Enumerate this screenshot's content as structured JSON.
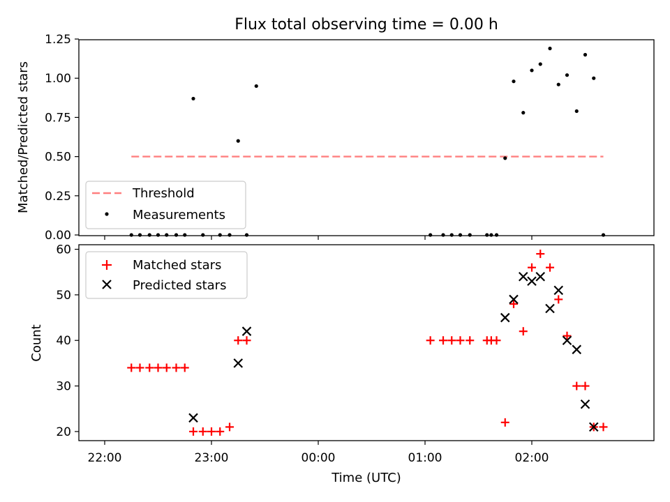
{
  "title": "Flux total observing time = 0.00 h",
  "x_ticks": [
    "22:00",
    "23:00",
    "00:00",
    "01:00",
    "02:00"
  ],
  "chart_data": [
    {
      "type": "scatter",
      "ylabel": "Matched/Predicted stars",
      "ylim": [
        0,
        1.25
      ],
      "yticks": [
        "0.00",
        "0.25",
        "0.50",
        "0.75",
        "1.00",
        "1.25"
      ],
      "x_unit": "hours since 21:00 UTC",
      "threshold": {
        "name": "Threshold",
        "value": 0.5,
        "x_range": [
          1.25,
          5.67
        ],
        "color": "#ff7f7f"
      },
      "measurements": {
        "name": "Measurements",
        "color": "#000000",
        "x": [
          1.25,
          1.33,
          1.42,
          1.5,
          1.58,
          1.67,
          1.75,
          1.83,
          1.92,
          2.08,
          2.17,
          2.25,
          2.33,
          2.42,
          4.05,
          4.17,
          4.25,
          4.33,
          4.42,
          4.58,
          4.62,
          4.67,
          4.75,
          4.83,
          4.92,
          5.0,
          5.08,
          5.17,
          5.25,
          5.33,
          5.42,
          5.5,
          5.58,
          5.67
        ],
        "y": [
          0.0,
          0.0,
          0.0,
          0.0,
          0.0,
          0.0,
          0.0,
          0.87,
          0.0,
          0.0,
          0.0,
          0.6,
          0.0,
          0.95,
          0.0,
          0.0,
          0.0,
          0.0,
          0.0,
          0.0,
          0.0,
          0.0,
          0.49,
          0.98,
          0.78,
          1.05,
          1.09,
          1.19,
          0.96,
          1.02,
          0.79,
          1.15,
          1.0,
          0.0
        ]
      },
      "legend": "lower-left"
    },
    {
      "type": "scatter",
      "xlabel": "Time (UTC)",
      "ylabel": "Count",
      "ylim": [
        18,
        61
      ],
      "yticks": [
        "20",
        "30",
        "40",
        "50",
        "60"
      ],
      "x_unit": "hours since 21:00 UTC",
      "series": [
        {
          "name": "Matched stars",
          "marker": "+",
          "color": "#ff0000",
          "x": [
            1.25,
            1.33,
            1.42,
            1.5,
            1.58,
            1.67,
            1.75,
            1.83,
            1.92,
            2.0,
            2.08,
            2.17,
            2.25,
            2.33,
            4.05,
            4.17,
            4.25,
            4.33,
            4.42,
            4.58,
            4.62,
            4.67,
            4.75,
            4.83,
            4.92,
            5.0,
            5.08,
            5.17,
            5.25,
            5.33,
            5.42,
            5.5,
            5.58,
            5.67
          ],
          "y": [
            34,
            34,
            34,
            34,
            34,
            34,
            34,
            20,
            20,
            20,
            20,
            21,
            40,
            40,
            40,
            40,
            40,
            40,
            40,
            40,
            40,
            40,
            22,
            48,
            42,
            56,
            59,
            56,
            49,
            41,
            30,
            30,
            21,
            21
          ]
        },
        {
          "name": "Predicted stars",
          "marker": "x",
          "color": "#000000",
          "x": [
            1.83,
            2.25,
            2.33,
            4.75,
            4.83,
            4.92,
            5.0,
            5.08,
            5.17,
            5.25,
            5.33,
            5.42,
            5.5,
            5.58
          ],
          "y": [
            23,
            35,
            42,
            45,
            49,
            54,
            53,
            54,
            47,
            51,
            40,
            38,
            26,
            21
          ]
        }
      ],
      "legend": "top-left"
    }
  ]
}
